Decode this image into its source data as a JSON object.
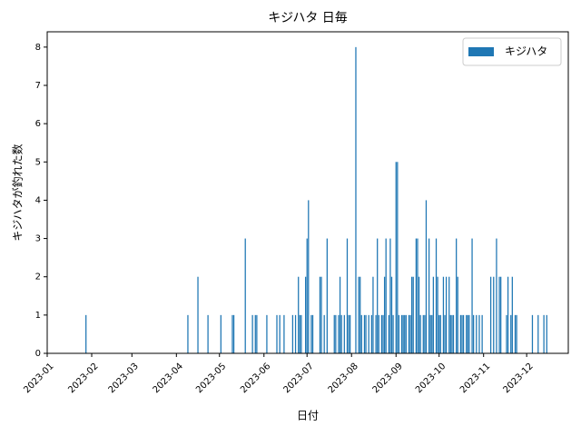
{
  "chart_data": {
    "type": "bar",
    "title": "キジハタ 日毎",
    "xlabel": "日付",
    "ylabel": "キジハタが釣れた数",
    "x": [
      "2023-01-28",
      "2023-04-09",
      "2023-04-16",
      "2023-04-23",
      "2023-05-02",
      "2023-05-10",
      "2023-05-11",
      "2023-05-19",
      "2023-05-24",
      "2023-05-26",
      "2023-05-27",
      "2023-06-03",
      "2023-06-10",
      "2023-06-12",
      "2023-06-15",
      "2023-06-21",
      "2023-06-23",
      "2023-06-25",
      "2023-06-26",
      "2023-06-27",
      "2023-06-30",
      "2023-07-01",
      "2023-07-02",
      "2023-07-04",
      "2023-07-05",
      "2023-07-10",
      "2023-07-11",
      "2023-07-13",
      "2023-07-15",
      "2023-07-20",
      "2023-07-21",
      "2023-07-23",
      "2023-07-24",
      "2023-07-25",
      "2023-07-27",
      "2023-07-29",
      "2023-07-30",
      "2023-07-31",
      "2023-08-04",
      "2023-08-06",
      "2023-08-07",
      "2023-08-08",
      "2023-08-10",
      "2023-08-11",
      "2023-08-13",
      "2023-08-15",
      "2023-08-16",
      "2023-08-18",
      "2023-08-19",
      "2023-08-20",
      "2023-08-22",
      "2023-08-23",
      "2023-08-24",
      "2023-08-25",
      "2023-08-27",
      "2023-08-28",
      "2023-08-29",
      "2023-08-30",
      "2023-09-01",
      "2023-09-02",
      "2023-09-03",
      "2023-09-05",
      "2023-09-06",
      "2023-09-07",
      "2023-09-08",
      "2023-09-10",
      "2023-09-11",
      "2023-09-12",
      "2023-09-13",
      "2023-09-15",
      "2023-09-16",
      "2023-09-17",
      "2023-09-18",
      "2023-09-20",
      "2023-09-21",
      "2023-09-22",
      "2023-09-24",
      "2023-09-25",
      "2023-09-26",
      "2023-09-27",
      "2023-09-29",
      "2023-09-30",
      "2023-10-01",
      "2023-10-02",
      "2023-10-04",
      "2023-10-05",
      "2023-10-06",
      "2023-10-08",
      "2023-10-09",
      "2023-10-10",
      "2023-10-11",
      "2023-10-13",
      "2023-10-14",
      "2023-10-16",
      "2023-10-17",
      "2023-10-18",
      "2023-10-20",
      "2023-10-21",
      "2023-10-22",
      "2023-10-24",
      "2023-10-25",
      "2023-10-27",
      "2023-10-29",
      "2023-10-31",
      "2023-11-06",
      "2023-11-08",
      "2023-11-10",
      "2023-11-12",
      "2023-11-13",
      "2023-11-17",
      "2023-11-18",
      "2023-11-20",
      "2023-11-21",
      "2023-11-23",
      "2023-11-24",
      "2023-12-05",
      "2023-12-09",
      "2023-12-13",
      "2023-12-15"
    ],
    "series": [
      {
        "name": "キジハタ",
        "color": "#1f77b4",
        "values": [
          1,
          1,
          2,
          1,
          1,
          1,
          1,
          3,
          1,
          1,
          1,
          1,
          1,
          1,
          1,
          1,
          1,
          2,
          1,
          1,
          2,
          3,
          4,
          1,
          1,
          2,
          2,
          1,
          3,
          1,
          1,
          1,
          2,
          1,
          1,
          3,
          1,
          1,
          8,
          2,
          2,
          1,
          1,
          1,
          1,
          1,
          2,
          1,
          3,
          1,
          1,
          1,
          2,
          3,
          1,
          3,
          2,
          1,
          5,
          5,
          1,
          1,
          1,
          1,
          1,
          1,
          1,
          2,
          2,
          3,
          3,
          2,
          1,
          1,
          1,
          4,
          3,
          1,
          1,
          2,
          3,
          2,
          1,
          1,
          2,
          1,
          2,
          2,
          1,
          1,
          1,
          3,
          2,
          1,
          1,
          1,
          1,
          1,
          1,
          3,
          1,
          1,
          1,
          1,
          2,
          2,
          3,
          2,
          2,
          1,
          2,
          1,
          2,
          1,
          1,
          1,
          1,
          1,
          1
        ]
      }
    ],
    "xlim": [
      "2023-01-01",
      "2023-12-30"
    ],
    "xticks": [
      "2023-01",
      "2023-02",
      "2023-03",
      "2023-04",
      "2023-05",
      "2023-06",
      "2023-07",
      "2023-08",
      "2023-09",
      "2023-10",
      "2023-11",
      "2023-12"
    ],
    "ylim": [
      0,
      8.4
    ],
    "yticks": [
      0,
      1,
      2,
      3,
      4,
      5,
      6,
      7,
      8
    ],
    "legend": "upper right"
  }
}
